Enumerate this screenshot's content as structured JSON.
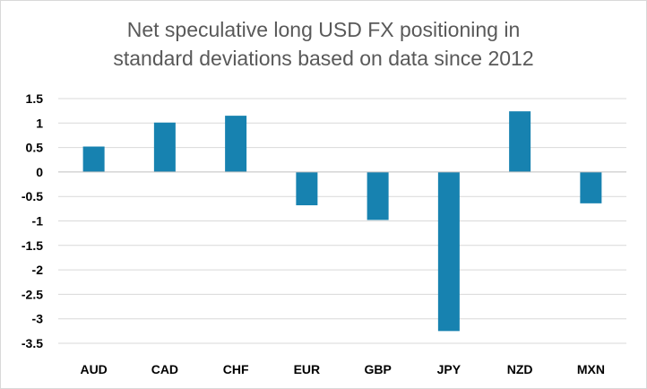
{
  "chart_data": {
    "type": "bar",
    "title_lines": [
      "Net speculative long USD FX positioning in",
      "standard deviations based on data since 2012"
    ],
    "xlabel": "",
    "ylabel": "",
    "categories": [
      "AUD",
      "CAD",
      "CHF",
      "EUR",
      "GBP",
      "JPY",
      "NZD",
      "MXN"
    ],
    "values": [
      0.52,
      1.01,
      1.15,
      -0.68,
      -0.98,
      -3.25,
      1.24,
      -0.64
    ],
    "ylim": [
      -3.5,
      1.5
    ],
    "yticks": [
      "1.5",
      "1",
      "0.5",
      "0",
      "-0.5",
      "-1",
      "-1.5",
      "-2",
      "-2.5",
      "-3",
      "-3.5"
    ],
    "grid": true,
    "legend": "none",
    "colors": {
      "bar": "#1782b0",
      "grid": "#d9d9d9",
      "axis": "#bfbfbf",
      "title": "#595959",
      "tick_label": "#000000"
    }
  }
}
